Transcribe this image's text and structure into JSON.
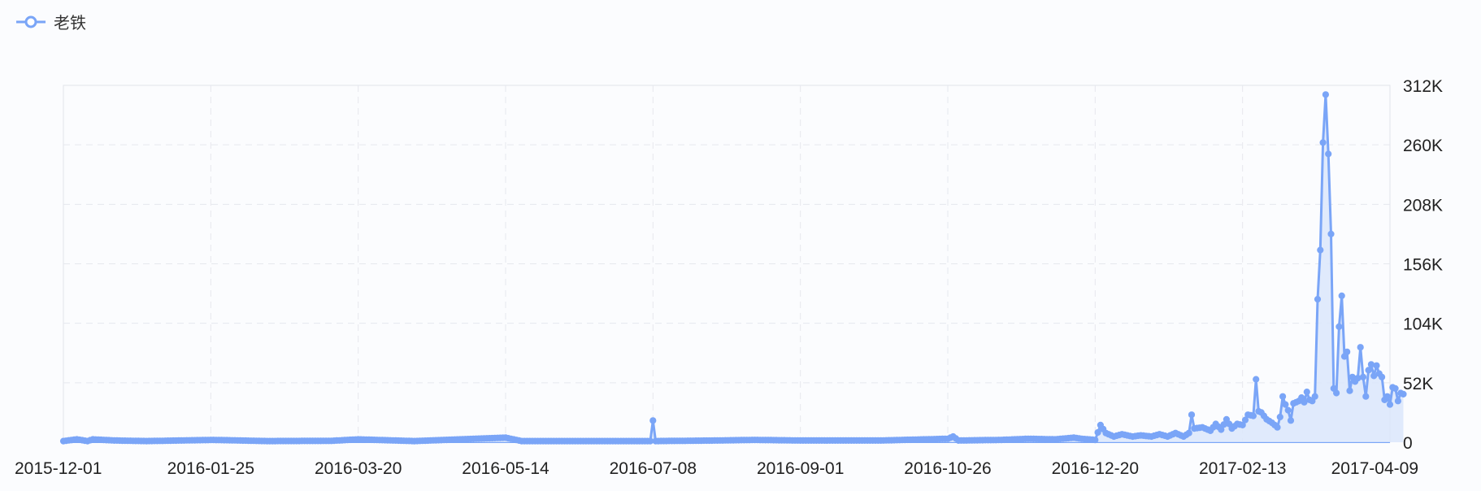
{
  "legend": {
    "label": "老铁",
    "icon": "line-marker-icon"
  },
  "colors": {
    "line": "#7aa5f7",
    "area": "#dbe6fb",
    "grid": "#e6e8ee",
    "frame": "#e2e4ea"
  },
  "chart_data": {
    "type": "area",
    "series": [
      {
        "name": "老铁"
      }
    ],
    "x_ticks": [
      "2015-12-01",
      "2016-01-25",
      "2016-03-20",
      "2016-05-14",
      "2016-07-08",
      "2016-09-01",
      "2016-10-26",
      "2016-12-20",
      "2017-02-13",
      "2017-04-09"
    ],
    "y_ticks": [
      "0",
      "52K",
      "104K",
      "156K",
      "208K",
      "260K",
      "312K"
    ],
    "ylim": [
      0,
      312000
    ],
    "xlim": [
      "2015-12-01",
      "2017-04-09"
    ],
    "points": [
      [
        "2015-12-01",
        1000
      ],
      [
        "2015-12-06",
        2500
      ],
      [
        "2015-12-10",
        1000
      ],
      [
        "2015-12-12",
        2500
      ],
      [
        "2015-12-20",
        1500
      ],
      [
        "2016-01-01",
        1000
      ],
      [
        "2016-01-26",
        2000
      ],
      [
        "2016-02-15",
        1000
      ],
      [
        "2016-03-10",
        1200
      ],
      [
        "2016-03-20",
        2500
      ],
      [
        "2016-04-10",
        1000
      ],
      [
        "2016-05-14",
        4000
      ],
      [
        "2016-05-20",
        1000
      ],
      [
        "2016-06-15",
        1000
      ],
      [
        "2016-07-07",
        1000
      ],
      [
        "2016-07-08",
        19000
      ],
      [
        "2016-07-09",
        1000
      ],
      [
        "2016-08-01",
        1500
      ],
      [
        "2016-08-15",
        2000
      ],
      [
        "2016-09-01",
        1500
      ],
      [
        "2016-10-01",
        1500
      ],
      [
        "2016-10-26",
        3000
      ],
      [
        "2016-10-28",
        5000
      ],
      [
        "2016-10-30",
        1500
      ],
      [
        "2016-11-15",
        2000
      ],
      [
        "2016-11-25",
        3000
      ],
      [
        "2016-12-05",
        2500
      ],
      [
        "2016-12-12",
        4000
      ],
      [
        "2016-12-15",
        3000
      ],
      [
        "2016-12-20",
        2000
      ],
      [
        "2016-12-22",
        15000
      ],
      [
        "2016-12-24",
        8000
      ],
      [
        "2016-12-27",
        5000
      ],
      [
        "2016-12-30",
        7000
      ],
      [
        "2017-01-03",
        5000
      ],
      [
        "2017-01-06",
        6000
      ],
      [
        "2017-01-10",
        5000
      ],
      [
        "2017-01-13",
        7000
      ],
      [
        "2017-01-16",
        5000
      ],
      [
        "2017-01-19",
        8000
      ],
      [
        "2017-01-22",
        5000
      ],
      [
        "2017-01-24",
        8000
      ],
      [
        "2017-01-25",
        24000
      ],
      [
        "2017-01-26",
        12000
      ],
      [
        "2017-01-29",
        13000
      ],
      [
        "2017-02-01",
        10000
      ],
      [
        "2017-02-03",
        16000
      ],
      [
        "2017-02-05",
        11000
      ],
      [
        "2017-02-07",
        20000
      ],
      [
        "2017-02-09",
        12000
      ],
      [
        "2017-02-11",
        16000
      ],
      [
        "2017-02-13",
        15000
      ],
      [
        "2017-02-15",
        24000
      ],
      [
        "2017-02-17",
        23000
      ],
      [
        "2017-02-18",
        55000
      ],
      [
        "2017-02-19",
        27000
      ],
      [
        "2017-02-20",
        26000
      ],
      [
        "2017-02-22",
        20000
      ],
      [
        "2017-02-24",
        17000
      ],
      [
        "2017-02-26",
        13000
      ],
      [
        "2017-02-27",
        22000
      ],
      [
        "2017-02-28",
        40000
      ],
      [
        "2017-03-01",
        33000
      ],
      [
        "2017-03-02",
        28000
      ],
      [
        "2017-03-03",
        19000
      ],
      [
        "2017-03-04",
        34000
      ],
      [
        "2017-03-06",
        36000
      ],
      [
        "2017-03-07",
        39000
      ],
      [
        "2017-03-08",
        35000
      ],
      [
        "2017-03-09",
        44000
      ],
      [
        "2017-03-10",
        37000
      ],
      [
        "2017-03-11",
        36000
      ],
      [
        "2017-03-12",
        40000
      ],
      [
        "2017-03-13",
        125000
      ],
      [
        "2017-03-14",
        168000
      ],
      [
        "2017-03-15",
        262000
      ],
      [
        "2017-03-16",
        304000
      ],
      [
        "2017-03-17",
        252000
      ],
      [
        "2017-03-18",
        182000
      ],
      [
        "2017-03-19",
        47000
      ],
      [
        "2017-03-20",
        43000
      ],
      [
        "2017-03-21",
        101000
      ],
      [
        "2017-03-22",
        128000
      ],
      [
        "2017-03-23",
        75000
      ],
      [
        "2017-03-24",
        79000
      ],
      [
        "2017-03-25",
        45000
      ],
      [
        "2017-03-26",
        57000
      ],
      [
        "2017-03-27",
        53000
      ],
      [
        "2017-03-28",
        56000
      ],
      [
        "2017-03-29",
        83000
      ],
      [
        "2017-03-30",
        57000
      ],
      [
        "2017-03-31",
        40000
      ],
      [
        "2017-04-01",
        63000
      ],
      [
        "2017-04-02",
        68000
      ],
      [
        "2017-04-03",
        58000
      ],
      [
        "2017-04-04",
        67000
      ],
      [
        "2017-04-05",
        60000
      ],
      [
        "2017-04-06",
        57000
      ],
      [
        "2017-04-07",
        37000
      ],
      [
        "2017-04-08",
        40000
      ],
      [
        "2017-04-09",
        33000
      ],
      [
        "2017-04-10",
        48000
      ],
      [
        "2017-04-11",
        47000
      ],
      [
        "2017-04-12",
        36000
      ],
      [
        "2017-04-13",
        43000
      ],
      [
        "2017-04-14",
        42000
      ]
    ],
    "grid": true,
    "legend_position": "top-left"
  }
}
